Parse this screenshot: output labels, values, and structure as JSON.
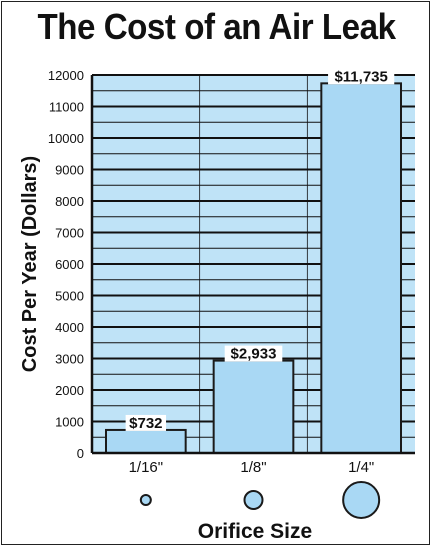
{
  "chart_data": {
    "type": "bar",
    "title": "The Cost of an Air Leak",
    "xlabel": "Orifice Size",
    "ylabel": "Cost Per Year (Dollars)",
    "categories": [
      "1/16\"",
      "1/8\"",
      "1/4\""
    ],
    "values": [
      732,
      2933,
      11735
    ],
    "value_labels": [
      "$732",
      "$2,933",
      "$11,735"
    ],
    "orifice_icons": [
      "small-circle-icon",
      "medium-circle-icon",
      "large-circle-icon"
    ],
    "yticks": [
      0,
      1000,
      2000,
      3000,
      4000,
      5000,
      6000,
      7000,
      8000,
      9000,
      10000,
      11000,
      12000
    ],
    "ylim": [
      0,
      12000
    ],
    "grid": true,
    "colors": {
      "bar_fill": "#a9d8f4",
      "bar_stroke": "#1a1a1a",
      "grid_bg": "#bfe3f7",
      "grid_line": "#111111",
      "text": "#111111"
    }
  }
}
